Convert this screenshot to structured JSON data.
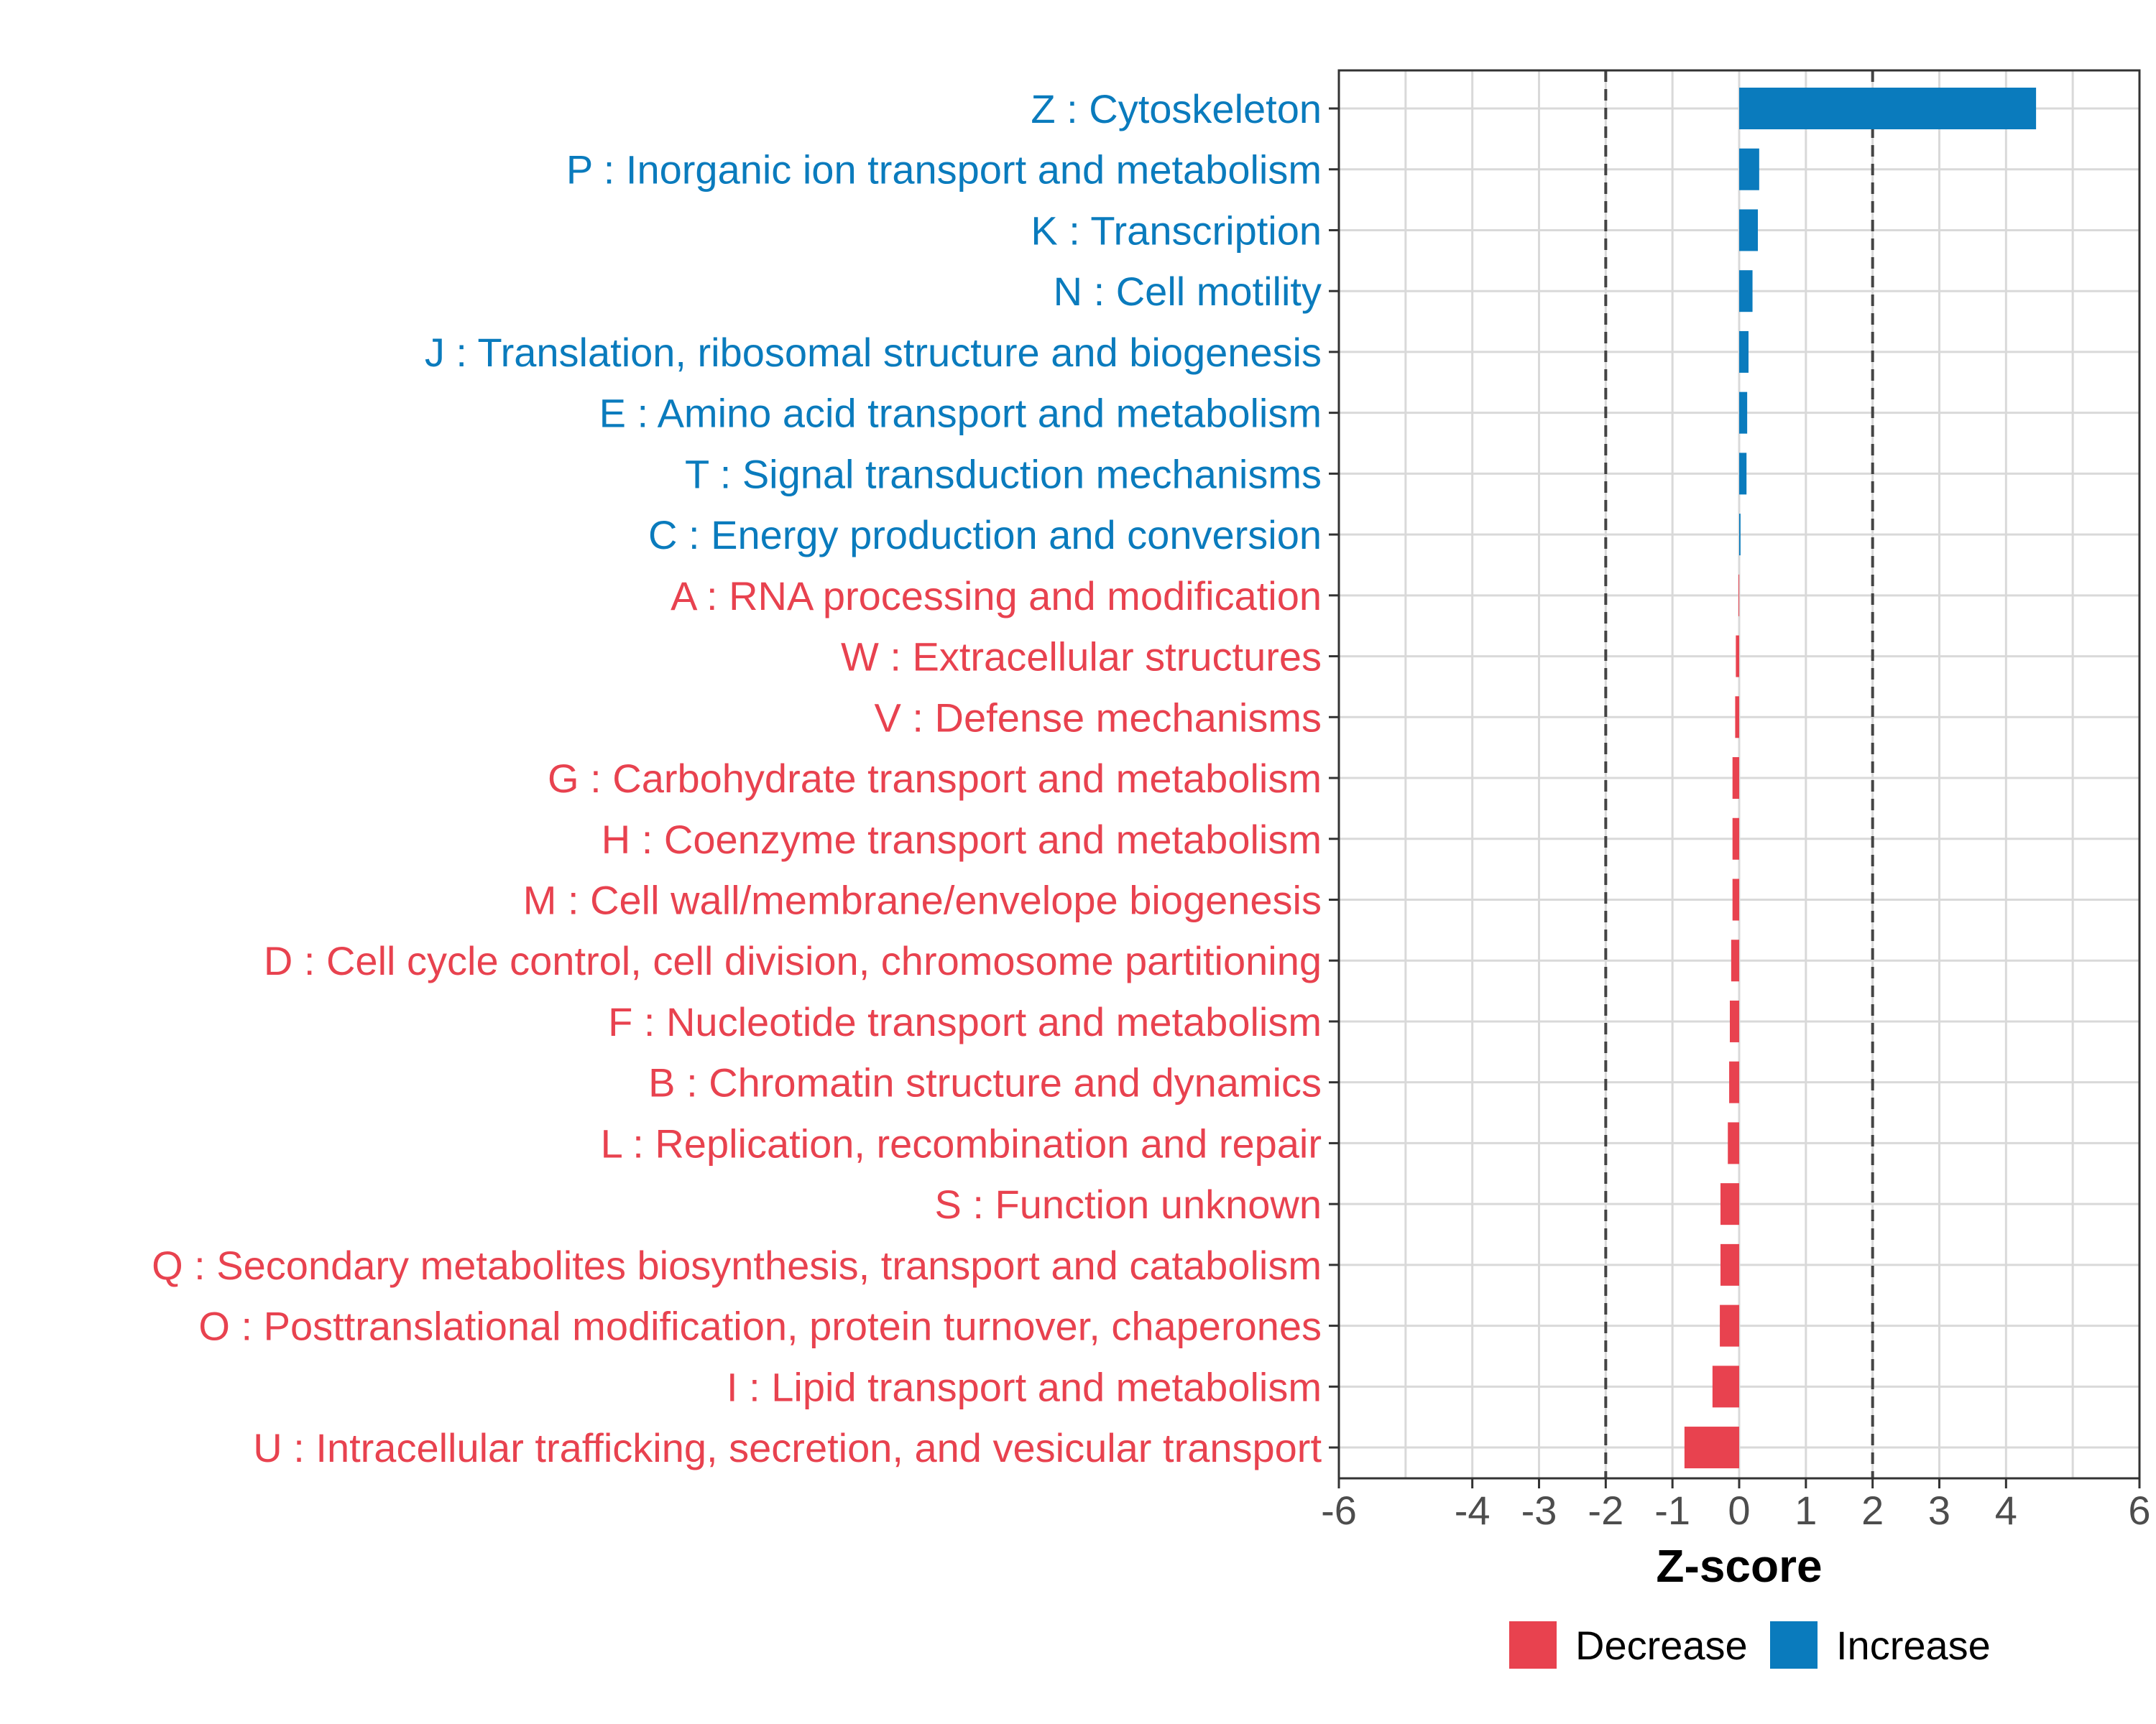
{
  "colors": {
    "increase": "#0a7bbd",
    "decrease": "#e8424f",
    "grid": "#d9d9d9",
    "refline": "#444444"
  },
  "chart_data": {
    "type": "bar",
    "orientation": "horizontal",
    "title": "",
    "xlabel": "Z-score",
    "ylabel": "",
    "xlim": [
      -6,
      6
    ],
    "xticks": [
      -6,
      -4,
      -3,
      -2,
      -1,
      0,
      1,
      2,
      3,
      4,
      6
    ],
    "reference_lines": [
      -2,
      2
    ],
    "grid": true,
    "categories": [
      "Z : Cytoskeleton",
      "P : Inorganic ion transport and metabolism",
      "K : Transcription",
      "N : Cell motility",
      "J : Translation, ribosomal structure and biogenesis",
      "E : Amino acid transport and metabolism",
      "T : Signal transduction mechanisms",
      "C : Energy production and conversion",
      "A : RNA processing and modification",
      "W : Extracellular structures",
      "V : Defense mechanisms",
      "G : Carbohydrate transport and metabolism",
      "H : Coenzyme transport and metabolism",
      "M : Cell wall/membrane/envelope biogenesis",
      "D : Cell cycle control, cell division, chromosome partitioning",
      "F : Nucleotide transport and metabolism",
      "B : Chromatin structure and dynamics",
      "L : Replication, recombination and repair",
      "S : Function unknown",
      "Q : Secondary metabolites biosynthesis, transport and catabolism",
      "O : Posttranslational modification, protein turnover, chaperones",
      "I : Lipid transport and metabolism",
      "U : Intracellular trafficking, secretion, and vesicular transport"
    ],
    "values": [
      4.45,
      0.3,
      0.28,
      0.2,
      0.14,
      0.12,
      0.11,
      0.02,
      -0.01,
      -0.05,
      -0.06,
      -0.1,
      -0.1,
      -0.1,
      -0.12,
      -0.14,
      -0.15,
      -0.17,
      -0.28,
      -0.28,
      -0.29,
      -0.4,
      -0.82
    ],
    "groups": [
      "Increase",
      "Increase",
      "Increase",
      "Increase",
      "Increase",
      "Increase",
      "Increase",
      "Increase",
      "Decrease",
      "Decrease",
      "Decrease",
      "Decrease",
      "Decrease",
      "Decrease",
      "Decrease",
      "Decrease",
      "Decrease",
      "Decrease",
      "Decrease",
      "Decrease",
      "Decrease",
      "Decrease",
      "Decrease"
    ],
    "legend": {
      "position": "bottom",
      "entries": [
        {
          "label": "Decrease",
          "color": "#e8424f"
        },
        {
          "label": "Increase",
          "color": "#0a7bbd"
        }
      ]
    }
  }
}
